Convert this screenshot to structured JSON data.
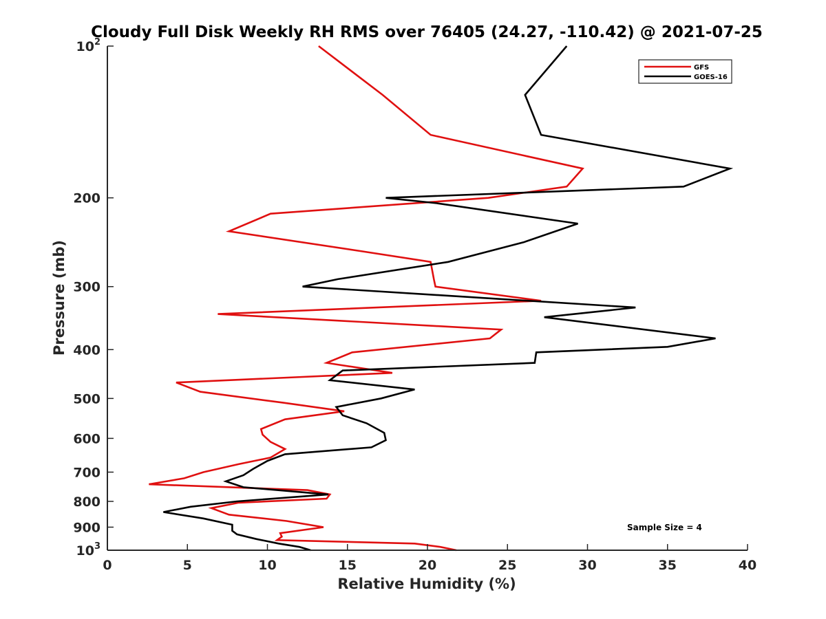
{
  "chart_data": {
    "type": "line",
    "title": "Cloudy Full Disk Weekly RH RMS over 76405 (24.27, -110.42) @ 2021-07-25",
    "xlabel": "Relative Humidity (%)",
    "ylabel": "Pressure (mb)",
    "xlim": [
      0,
      40
    ],
    "ylim": [
      100,
      1000
    ],
    "yscale": "log",
    "y_reversed": true,
    "xticks": [
      0,
      5,
      10,
      15,
      20,
      25,
      30,
      35,
      40
    ],
    "xtick_labels": [
      "0",
      "5",
      "10",
      "15",
      "20",
      "25",
      "30",
      "35",
      "40"
    ],
    "yticks": [
      {
        "value": 100,
        "mantissa": "10",
        "exp": "2"
      },
      {
        "value": 200,
        "label": "200"
      },
      {
        "value": 300,
        "label": "300"
      },
      {
        "value": 400,
        "label": "400"
      },
      {
        "value": 500,
        "label": "500"
      },
      {
        "value": 600,
        "label": "600"
      },
      {
        "value": 700,
        "label": "700"
      },
      {
        "value": 800,
        "label": "800"
      },
      {
        "value": 900,
        "label": "900"
      },
      {
        "value": 1000,
        "mantissa": "10",
        "exp": "3"
      }
    ],
    "legend_position": "top-right",
    "series": [
      {
        "name": "GFS",
        "color": "#e01010",
        "points": [
          [
            13.2,
            100
          ],
          [
            17.2,
            125
          ],
          [
            20.2,
            150
          ],
          [
            29.7,
            175
          ],
          [
            28.7,
            190
          ],
          [
            23.8,
            200
          ],
          [
            10.2,
            215
          ],
          [
            7.6,
            233
          ],
          [
            15.8,
            255
          ],
          [
            20.2,
            268
          ],
          [
            20.4,
            290
          ],
          [
            20.5,
            300
          ],
          [
            27.1,
            320
          ],
          [
            6.9,
            340
          ],
          [
            24.6,
            365
          ],
          [
            23.9,
            380
          ],
          [
            15.3,
            405
          ],
          [
            13.7,
            425
          ],
          [
            17.8,
            445
          ],
          [
            4.3,
            465
          ],
          [
            5.8,
            485
          ],
          [
            11.0,
            510
          ],
          [
            14.8,
            530
          ],
          [
            11.1,
            550
          ],
          [
            9.6,
            575
          ],
          [
            9.7,
            590
          ],
          [
            10.2,
            610
          ],
          [
            11.1,
            630
          ],
          [
            10.2,
            655
          ],
          [
            8.2,
            675
          ],
          [
            6.0,
            700
          ],
          [
            4.8,
            720
          ],
          [
            2.6,
            740
          ],
          [
            12.5,
            760
          ],
          [
            13.9,
            775
          ],
          [
            13.7,
            790
          ],
          [
            8.2,
            805
          ],
          [
            6.5,
            825
          ],
          [
            7.6,
            850
          ],
          [
            11.2,
            875
          ],
          [
            13.5,
            900
          ],
          [
            10.8,
            925
          ],
          [
            10.9,
            940
          ],
          [
            10.6,
            955
          ],
          [
            19.2,
            970
          ],
          [
            20.8,
            985
          ],
          [
            21.8,
            1000
          ]
        ]
      },
      {
        "name": "GOES-16",
        "color": "#000000",
        "points": [
          [
            28.7,
            100
          ],
          [
            26.1,
            125
          ],
          [
            27.1,
            150
          ],
          [
            38.9,
            175
          ],
          [
            36.0,
            190
          ],
          [
            17.4,
            200
          ],
          [
            20.6,
            205
          ],
          [
            29.4,
            225
          ],
          [
            26.0,
            245
          ],
          [
            21.3,
            268
          ],
          [
            14.4,
            290
          ],
          [
            12.2,
            300
          ],
          [
            33.0,
            330
          ],
          [
            27.3,
            345
          ],
          [
            38.0,
            380
          ],
          [
            35.0,
            395
          ],
          [
            26.8,
            405
          ],
          [
            26.7,
            425
          ],
          [
            14.7,
            440
          ],
          [
            13.9,
            460
          ],
          [
            19.2,
            480
          ],
          [
            17.1,
            500
          ],
          [
            14.3,
            520
          ],
          [
            14.7,
            540
          ],
          [
            16.2,
            560
          ],
          [
            17.3,
            585
          ],
          [
            17.4,
            605
          ],
          [
            16.5,
            625
          ],
          [
            11.1,
            645
          ],
          [
            10.0,
            665
          ],
          [
            9.1,
            690
          ],
          [
            8.5,
            710
          ],
          [
            7.4,
            730
          ],
          [
            8.5,
            750
          ],
          [
            13.8,
            775
          ],
          [
            8.1,
            800
          ],
          [
            5.2,
            820
          ],
          [
            3.5,
            840
          ],
          [
            6.0,
            865
          ],
          [
            7.8,
            890
          ],
          [
            7.8,
            915
          ],
          [
            8.1,
            930
          ],
          [
            9.3,
            950
          ],
          [
            10.7,
            970
          ],
          [
            12.0,
            985
          ],
          [
            12.7,
            1000
          ]
        ]
      }
    ],
    "annotations": [
      "Sample Size = 4"
    ]
  }
}
